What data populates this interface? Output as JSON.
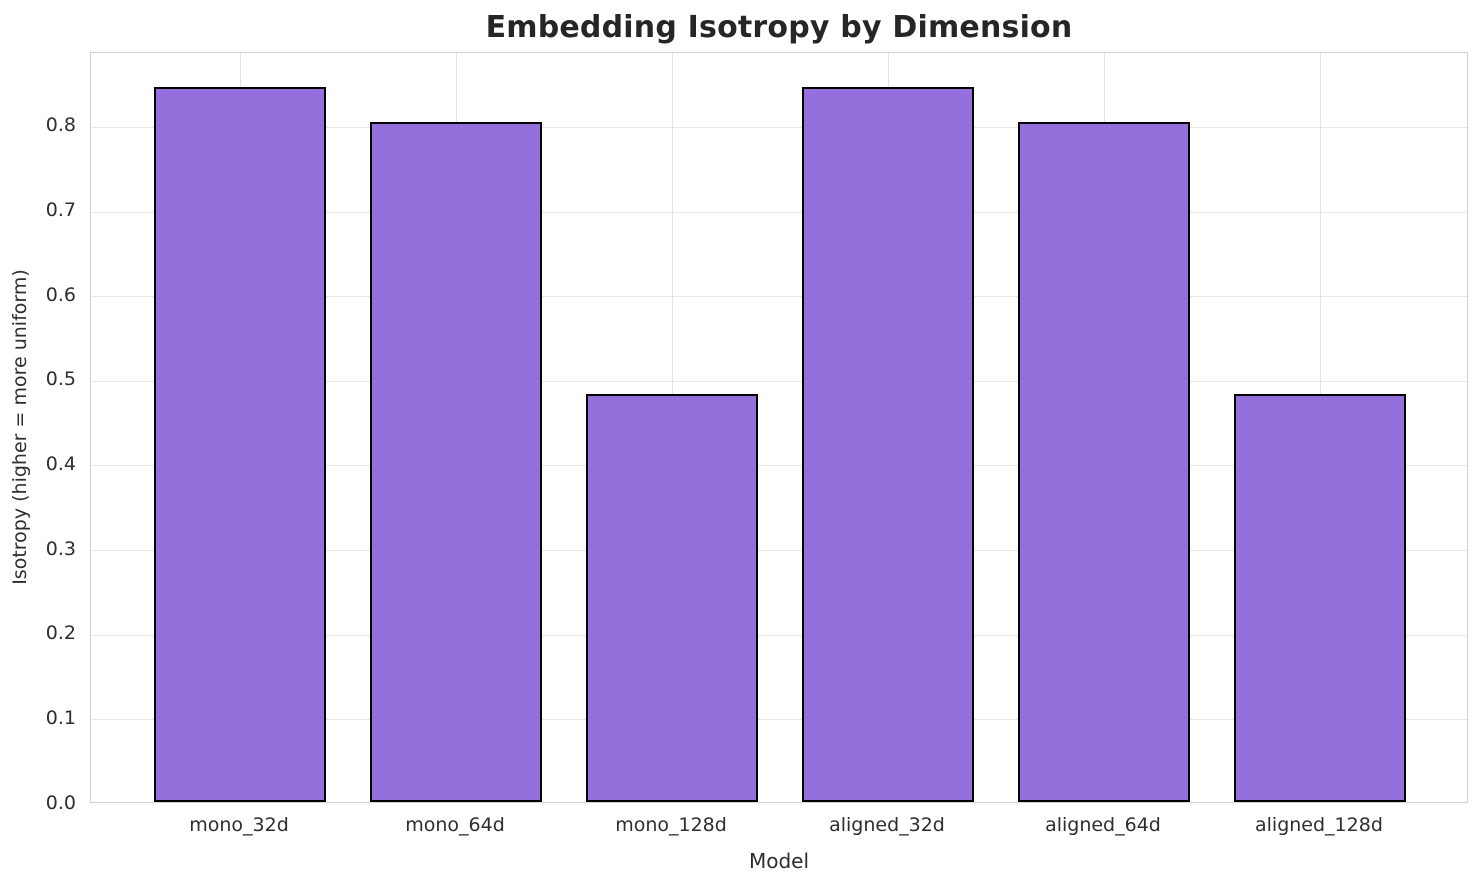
{
  "chart_data": {
    "type": "bar",
    "title": "Embedding Isotropy by Dimension",
    "xlabel": "Model",
    "ylabel": "Isotropy (higher = more uniform)",
    "categories": [
      "mono_32d",
      "mono_64d",
      "mono_128d",
      "aligned_32d",
      "aligned_64d",
      "aligned_128d"
    ],
    "values": [
      0.845,
      0.803,
      0.482,
      0.845,
      0.803,
      0.482
    ],
    "yticks": [
      0.0,
      0.1,
      0.2,
      0.3,
      0.4,
      0.5,
      0.6,
      0.7,
      0.8
    ],
    "ytick_labels": [
      "0.0",
      "0.1",
      "0.2",
      "0.3",
      "0.4",
      "0.5",
      "0.6",
      "0.7",
      "0.8"
    ],
    "ylim": [
      0,
      0.8873
    ],
    "xlim": [
      -0.69,
      5.69
    ],
    "bar_width_units": 0.8,
    "grid": true,
    "legend_position": "none",
    "colors": {
      "bar_fill": "#9370DB",
      "bar_edge": "#000000",
      "grid_line": "#e7e7e7",
      "plot_border": "#d0d0d0",
      "title_text": "#262626",
      "tick_text": "#2e2e2e",
      "background": "#ffffff"
    }
  }
}
